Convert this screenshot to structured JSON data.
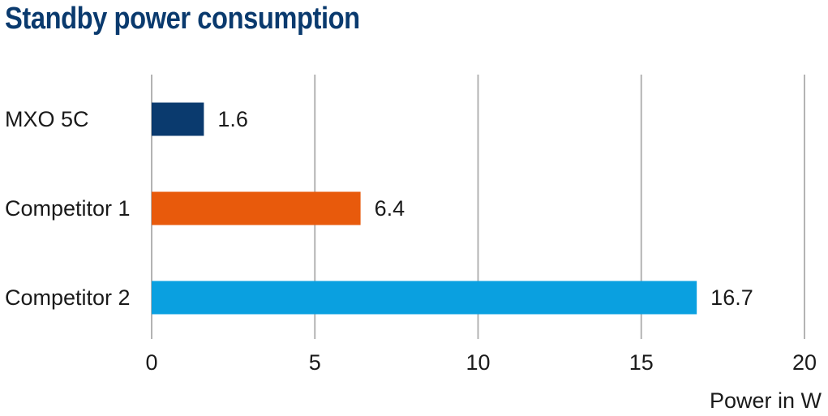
{
  "title": "Standby power consumption",
  "chart_data": {
    "type": "bar",
    "orientation": "horizontal",
    "title": "Standby power consumption",
    "categories": [
      "MXO 5C",
      "Competitor 1",
      "Competitor 2"
    ],
    "values": [
      1.6,
      6.4,
      16.7
    ],
    "value_labels": [
      "1.6",
      "6.4",
      "16.7"
    ],
    "colors": [
      "#0a3a6e",
      "#e85a0c",
      "#0aa0e0"
    ],
    "xlabel": "Power in W",
    "ylabel": "",
    "xlim": [
      0,
      20
    ],
    "xticks": [
      0,
      5,
      10,
      15,
      20
    ],
    "xtick_labels": [
      "0",
      "5",
      "10",
      "15",
      "20"
    ],
    "grid": true,
    "grid_axis": "x",
    "legend": "none"
  }
}
